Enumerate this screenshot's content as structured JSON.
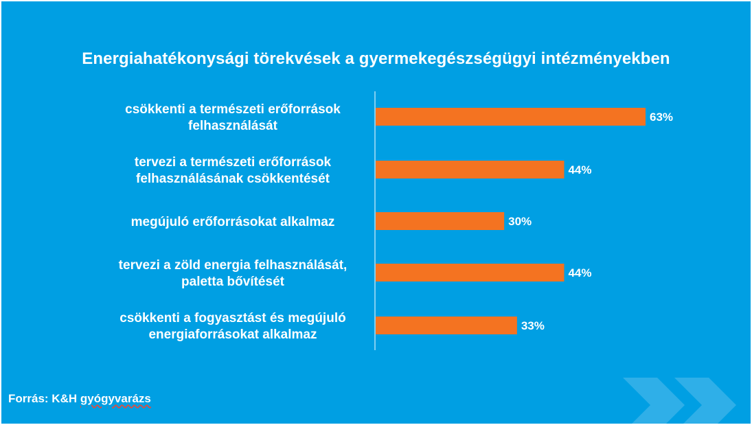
{
  "chart_data": {
    "type": "bar",
    "orientation": "horizontal",
    "title": "Energiahatékonysági törekvések a gyermekegészségügyi intézményekben",
    "categories": [
      [
        "csökkenti a természeti erőforrások",
        "felhasználását"
      ],
      [
        "tervezi a természeti erőforrások",
        "felhasználásának csökkentését"
      ],
      [
        "megújuló erőforrásokat alkalmaz"
      ],
      [
        "tervezi a zöld energia felhasználását,",
        "paletta bővítését"
      ],
      [
        "csökkenti a fogyasztást és megújuló",
        "energiaforrásokat alkalmaz"
      ]
    ],
    "values": [
      63,
      44,
      30,
      44,
      33
    ],
    "value_labels": [
      "63%",
      "44%",
      "30%",
      "44%",
      "33%"
    ],
    "unit": "%",
    "xlim": [
      0,
      100
    ],
    "grid": false,
    "bar_color": "#f47321"
  },
  "source": {
    "prefix": "Forrás: K&H ",
    "brand": "gyógyvarázs"
  },
  "colors": {
    "background": "#009fe3",
    "text": "#ffffff",
    "bar": "#f47321",
    "accent_chevron": "#3fb4ea"
  }
}
